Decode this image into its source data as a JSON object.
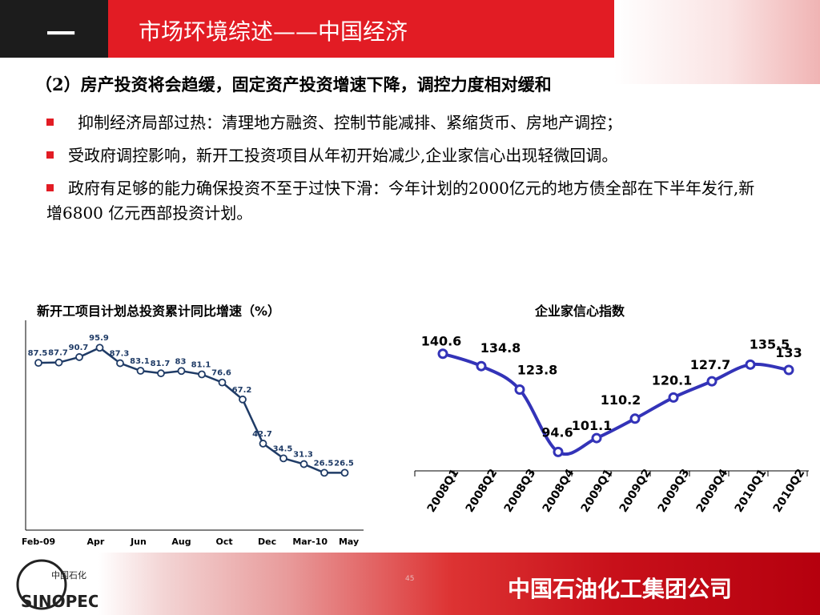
{
  "header": {
    "section_number": "一",
    "title": "市场环境综述——中国经济"
  },
  "subtitle": "（2）房产投资将会趋缓，固定资产投资增速下降，调控力度相对缓和",
  "bullets": [
    "抑制经济局部过热：清理地方融资、控制节能减排、紧缩货币、房地产调控；",
    "受政府调控影响，新开工投资项目从年初开始减少,企业家信心出现轻微回调。",
    "政府有足够的能力确保投资不至于过快下滑：今年计划的2000亿元的地方债全部在下半年发行,新增6800 亿元西部投资计划。"
  ],
  "colors": {
    "accent_red": "#e21c24",
    "chart1_line": "#1f3b66",
    "chart2_line": "#3333b8"
  },
  "chart_data": [
    {
      "type": "line",
      "title": "新开工项目计划总投资累计同比增速（%）",
      "x_tick_labels": [
        "Feb-09",
        "Apr",
        "Jun",
        "Aug",
        "Oct",
        "Dec",
        "Mar-10",
        "May"
      ],
      "x": [
        "Feb-09",
        "Mar-09",
        "Apr-09",
        "May-09",
        "Jun-09",
        "Jul-09",
        "Aug-09",
        "Sep-09",
        "Oct-09",
        "Nov-09",
        "Dec-09",
        "Feb-10",
        "Mar-10",
        "Apr-10",
        "May-10",
        "Jun-10"
      ],
      "values": [
        87.5,
        87.7,
        90.7,
        95.9,
        87.3,
        83.1,
        81.7,
        83,
        81.1,
        76.6,
        67.2,
        42.7,
        34.5,
        31.3,
        26.5,
        26.5
      ],
      "labels": [
        "87.5",
        "87.7",
        "90.7",
        "95.9",
        "87.3",
        "83.1",
        "81.7",
        "83",
        "81.1",
        "76.6",
        "67.2",
        "42.7",
        "34.5",
        "31.3",
        "26.5",
        "26.5"
      ],
      "xlabel": "",
      "ylabel": "",
      "ylim": [
        20,
        100
      ]
    },
    {
      "type": "line",
      "title": "企业家信心指数",
      "categories": [
        "2008Q1",
        "2008Q2",
        "2008Q3",
        "2008Q4",
        "2009Q1",
        "2009Q2",
        "2009Q3",
        "2009Q4",
        "2010Q1",
        "2010Q2"
      ],
      "values": [
        140.6,
        134.8,
        123.8,
        94.6,
        101.1,
        110.2,
        120.1,
        127.7,
        135.5,
        133
      ],
      "labels": [
        "140.6",
        "134.8",
        "123.8",
        "94.6",
        "101.1",
        "110.2",
        "120.1",
        "127.7",
        "135.5",
        "133"
      ],
      "xlabel": "",
      "ylabel": "",
      "ylim": [
        85,
        145
      ]
    }
  ],
  "footer": {
    "company": "中国石油化工集团公司",
    "page_number": "45",
    "logo_text": "中国石化",
    "logo_wordmark": "SINOPEC"
  }
}
